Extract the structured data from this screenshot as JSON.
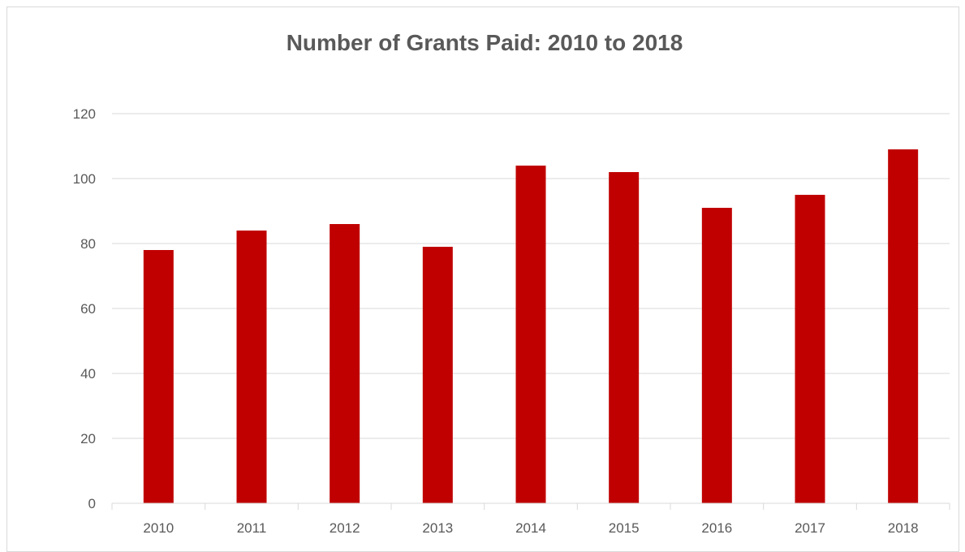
{
  "chart_data": {
    "type": "bar",
    "title": "Number of Grants Paid: 2010 to 2018",
    "xlabel": "",
    "ylabel": "",
    "categories": [
      "2010",
      "2011",
      "2012",
      "2013",
      "2014",
      "2015",
      "2016",
      "2017",
      "2018"
    ],
    "values": [
      78,
      84,
      86,
      79,
      104,
      102,
      91,
      95,
      109
    ],
    "ylim": [
      0,
      120
    ],
    "yticks": [
      "0",
      "20",
      "40",
      "60",
      "80",
      "100",
      "120"
    ],
    "grid": true,
    "legend": "none",
    "bar_color": "#c00000"
  }
}
